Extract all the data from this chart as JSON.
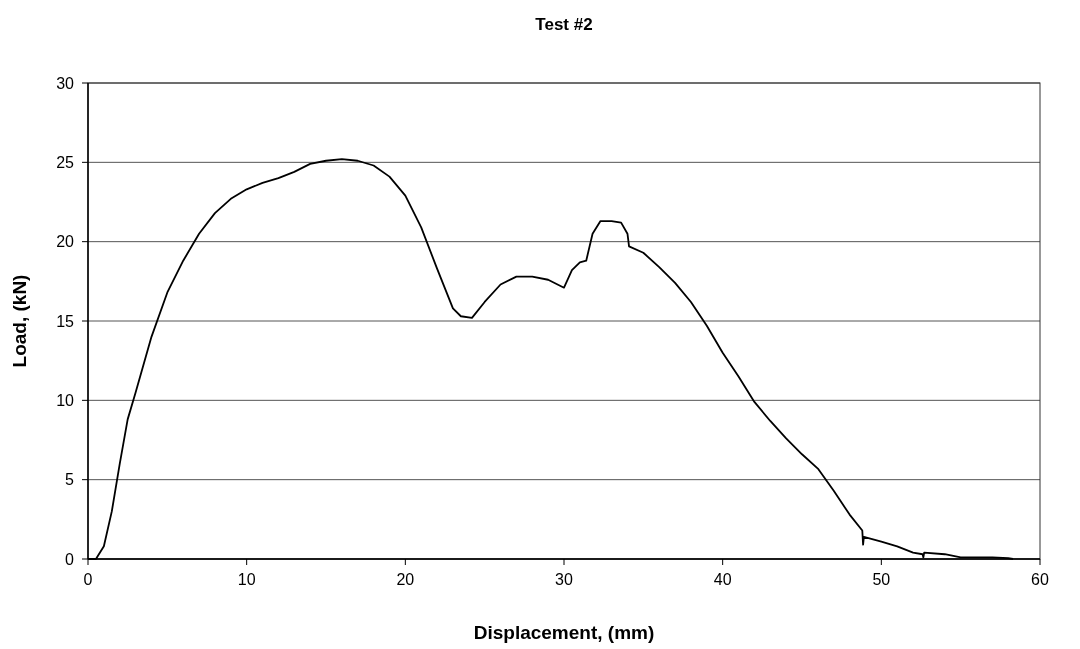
{
  "chart_data": {
    "type": "line",
    "title": "Test #2",
    "xlabel": "Displacement, (mm)",
    "ylabel": "Load, (kN)",
    "xlim": [
      0,
      60
    ],
    "xticks": [
      0,
      10,
      20,
      30,
      40,
      50,
      60
    ],
    "ylim": [
      0,
      30
    ],
    "yticks": [
      0,
      5,
      10,
      15,
      20,
      25,
      30
    ],
    "grid": "y",
    "series": [
      {
        "color": "#000000",
        "x": [
          0,
          0.5,
          1,
          1.5,
          2,
          2.5,
          3,
          4,
          5,
          6,
          7,
          8,
          9,
          10,
          11,
          12,
          13,
          14,
          15,
          16,
          17,
          18,
          19,
          20,
          21,
          22,
          23,
          23.5,
          24.2,
          25,
          26,
          27,
          28,
          29,
          30,
          30.5,
          31,
          31.4,
          31.8,
          32.3,
          33,
          33.6,
          34,
          34.1,
          35,
          36,
          37,
          38,
          39,
          40,
          41,
          42,
          43,
          44,
          45,
          46,
          47,
          48,
          48.8,
          48.85,
          48.9,
          50,
          51,
          52,
          52.6,
          52.65,
          52.7,
          54,
          55,
          56,
          57,
          58,
          58.3
        ],
        "values": [
          0,
          0,
          0.8,
          3,
          6,
          8.8,
          10.5,
          14,
          16.8,
          18.8,
          20.5,
          21.8,
          22.7,
          23.3,
          23.7,
          24,
          24.4,
          24.9,
          25.1,
          25.2,
          25.1,
          24.8,
          24.1,
          22.9,
          20.9,
          18.3,
          15.8,
          15.3,
          15.2,
          16.2,
          17.3,
          17.8,
          17.8,
          17.6,
          17.1,
          18.2,
          18.7,
          18.8,
          20.5,
          21.3,
          21.3,
          21.2,
          20.5,
          19.7,
          19.3,
          18.4,
          17.4,
          16.2,
          14.7,
          13,
          11.5,
          9.9,
          8.7,
          7.6,
          6.6,
          5.7,
          4.3,
          2.8,
          1.8,
          0.9,
          1.4,
          1.1,
          0.8,
          0.4,
          0.3,
          0.1,
          0.4,
          0.3,
          0.1,
          0.1,
          0.1,
          0.05,
          0
        ]
      }
    ]
  }
}
